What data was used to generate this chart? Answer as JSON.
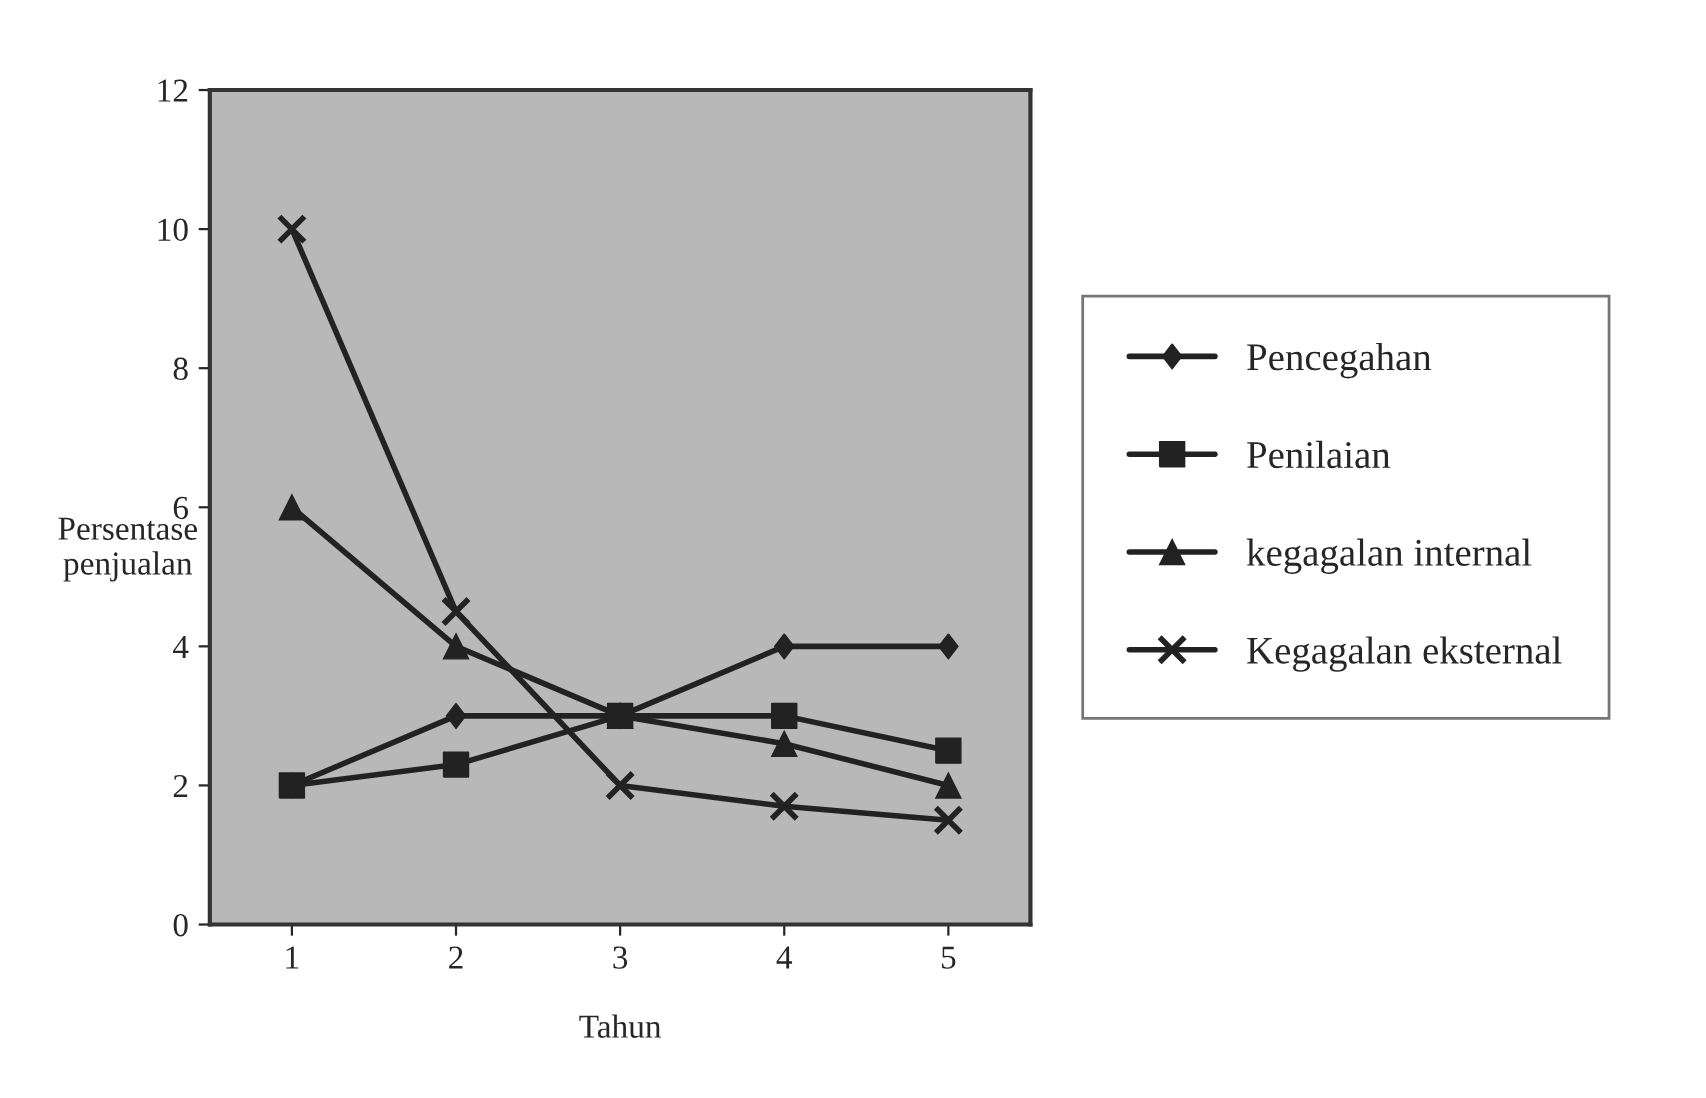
{
  "chart_data": {
    "type": "line",
    "xlabel": "Tahun",
    "ylabel": "Persentase\npenjualan",
    "categories": [
      "1",
      "2",
      "3",
      "4",
      "5"
    ],
    "series": [
      {
        "name": "Pencegahan",
        "color": "#222222",
        "marker": "diamond",
        "values": [
          2,
          3,
          3,
          4,
          4
        ]
      },
      {
        "name": "Penilaian",
        "color": "#222222",
        "marker": "square",
        "values": [
          2,
          2.3,
          3,
          3,
          2.5
        ]
      },
      {
        "name": "kegagalan internal",
        "color": "#222222",
        "marker": "triangle",
        "values": [
          6,
          4,
          3,
          2.6,
          2
        ]
      },
      {
        "name": "Kegagalan eksternal",
        "color": "#222222",
        "marker": "cross",
        "values": [
          10,
          4.5,
          2,
          1.7,
          1.5
        ]
      }
    ],
    "ylim": [
      0,
      12
    ],
    "yticks": [
      0,
      2,
      4,
      6,
      8,
      10,
      12
    ],
    "grid": false,
    "legend": "right",
    "line_style": "solid"
  }
}
